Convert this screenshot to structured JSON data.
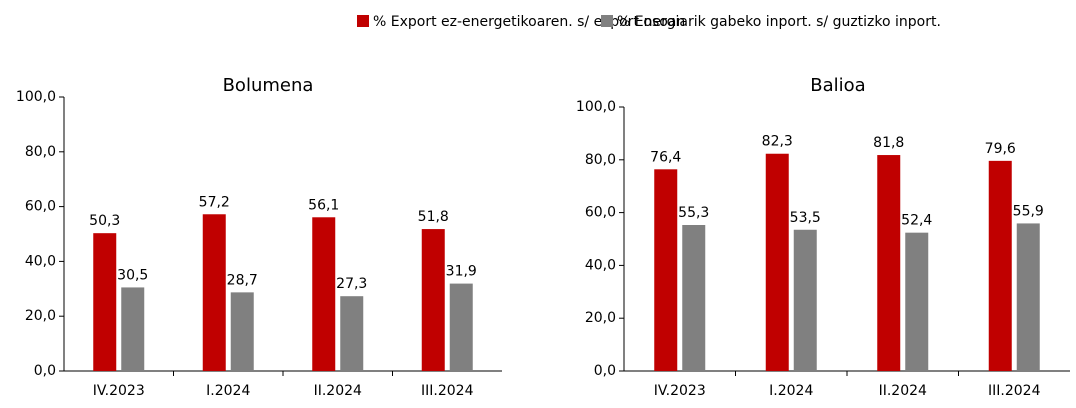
{
  "chart_data": [
    {
      "type": "bar",
      "title": "Bolumena",
      "categories": [
        "IV.2023",
        "I.2024",
        "II.2024",
        "III.2024"
      ],
      "series": [
        {
          "name": "% Export ez-energetikoaren. s/ export osoan",
          "color": "#c00000",
          "values": [
            50.3,
            57.2,
            56.1,
            51.8
          ],
          "value_labels": [
            "50,3",
            "57,2",
            "56,1",
            "51,8"
          ]
        },
        {
          "name": "% Energiarik gabeko inport. s/ guztizko inport.",
          "color": "#808080",
          "values": [
            30.5,
            28.7,
            27.3,
            31.9
          ],
          "value_labels": [
            "30,5",
            "28,7",
            "27,3",
            "31,9"
          ]
        }
      ],
      "ylim": [
        0,
        100
      ],
      "yticks": [
        {
          "value": 0,
          "label": "0,0"
        },
        {
          "value": 20,
          "label": "20,0"
        },
        {
          "value": 40,
          "label": "40,0"
        },
        {
          "value": 60,
          "label": "60,0"
        },
        {
          "value": 80,
          "label": "80,0"
        },
        {
          "value": 100,
          "label": "100,0"
        }
      ]
    },
    {
      "type": "bar",
      "title": "Balioa",
      "categories": [
        "IV.2023",
        "I.2024",
        "II.2024",
        "III.2024"
      ],
      "series": [
        {
          "name": "% Export ez-energetikoaren. s/ export osoan",
          "color": "#c00000",
          "values": [
            76.4,
            82.3,
            81.8,
            79.6
          ],
          "value_labels": [
            "76,4",
            "82,3",
            "81,8",
            "79,6"
          ]
        },
        {
          "name": "% Energiarik gabeko inport. s/ guztizko inport.",
          "color": "#808080",
          "values": [
            55.3,
            53.5,
            52.4,
            55.9
          ],
          "value_labels": [
            "55,3",
            "53,5",
            "52,4",
            "55,9"
          ]
        }
      ],
      "ylim": [
        0,
        100
      ],
      "yticks": [
        {
          "value": 0,
          "label": "0,0"
        },
        {
          "value": 20,
          "label": "20,0"
        },
        {
          "value": 40,
          "label": "40,0"
        },
        {
          "value": 60,
          "label": "60,0"
        },
        {
          "value": 80,
          "label": "80,0"
        },
        {
          "value": 100,
          "label": "100,0"
        }
      ]
    }
  ]
}
